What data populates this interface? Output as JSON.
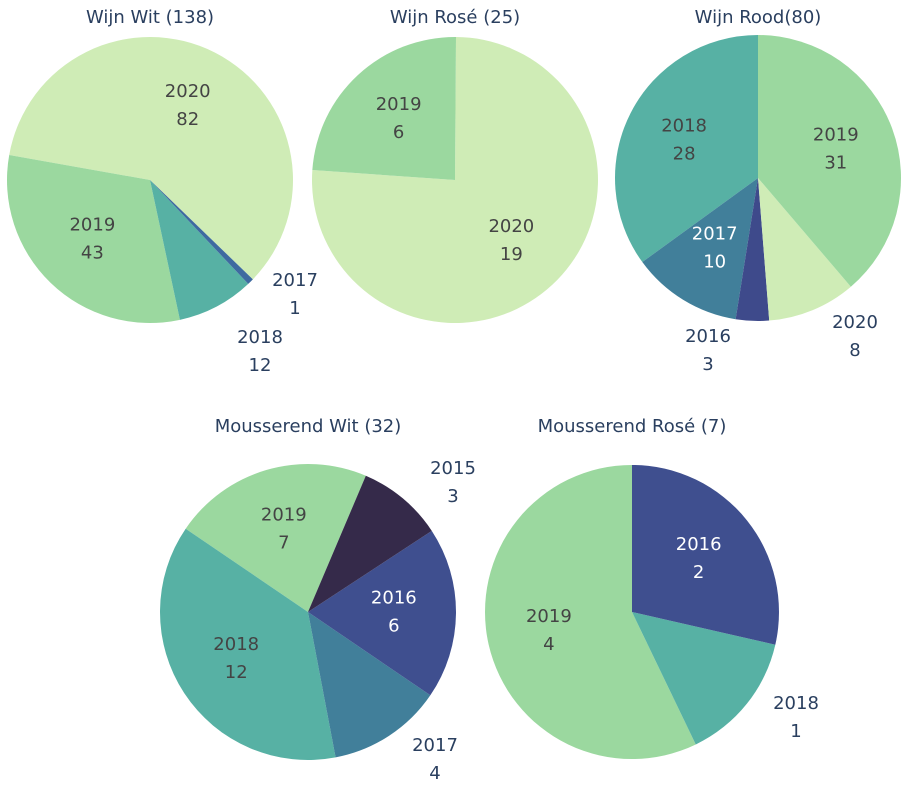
{
  "chart_data": [
    {
      "type": "pie",
      "title": "Wijn Wit (138)",
      "categories": [
        "2020",
        "2019",
        "2018",
        "2017"
      ],
      "values": [
        82,
        43,
        12,
        1
      ],
      "colors": [
        "#cfecb6",
        "#9bd89f",
        "#57b1a4",
        "#3e6aa0"
      ],
      "direction": "counterclockwise",
      "rotation": 134,
      "textposition": [
        "inside",
        "inside",
        "outside",
        "outside"
      ]
    },
    {
      "type": "pie",
      "title": "Wijn Rosé (25)",
      "categories": [
        "2020",
        "2019"
      ],
      "values": [
        19,
        6
      ],
      "colors": [
        "#cfecb6",
        "#9bd89f"
      ],
      "direction": "counterclockwise",
      "rotation": 274,
      "textposition": [
        "inside",
        "inside"
      ]
    },
    {
      "type": "pie",
      "title": "Wijn Rood(80)",
      "categories": [
        "2018",
        "2017",
        "2016",
        "2020",
        "2019"
      ],
      "values": [
        28,
        10,
        3,
        8,
        31
      ],
      "colors": [
        "#57b1a4",
        "#417f9a",
        "#3e4a8b",
        "#cfecb6",
        "#9bd89f"
      ],
      "direction": "counterclockwise",
      "rotation": 0,
      "textposition": [
        "inside",
        "inside",
        "outside",
        "outside",
        "inside"
      ]
    },
    {
      "type": "pie",
      "title": "Mousserend Wit (32)",
      "categories": [
        "2019",
        "2018",
        "2017",
        "2016",
        "2015"
      ],
      "values": [
        7,
        12,
        4,
        6,
        3
      ],
      "colors": [
        "#9bd89f",
        "#57b1a4",
        "#417f9a",
        "#3f4f8f",
        "#352a4a"
      ],
      "direction": "counterclockwise",
      "rotation": 23,
      "textposition": [
        "inside",
        "inside",
        "outside",
        "inside",
        "outside"
      ]
    },
    {
      "type": "pie",
      "title": "Mousserend Rosé (7)",
      "categories": [
        "2019",
        "2018",
        "2016"
      ],
      "values": [
        4,
        1,
        2
      ],
      "colors": [
        "#9bd89f",
        "#57b1a4",
        "#3f4f8f"
      ],
      "direction": "counterclockwise",
      "rotation": 0,
      "textposition": [
        "inside",
        "outside",
        "inside"
      ]
    }
  ]
}
